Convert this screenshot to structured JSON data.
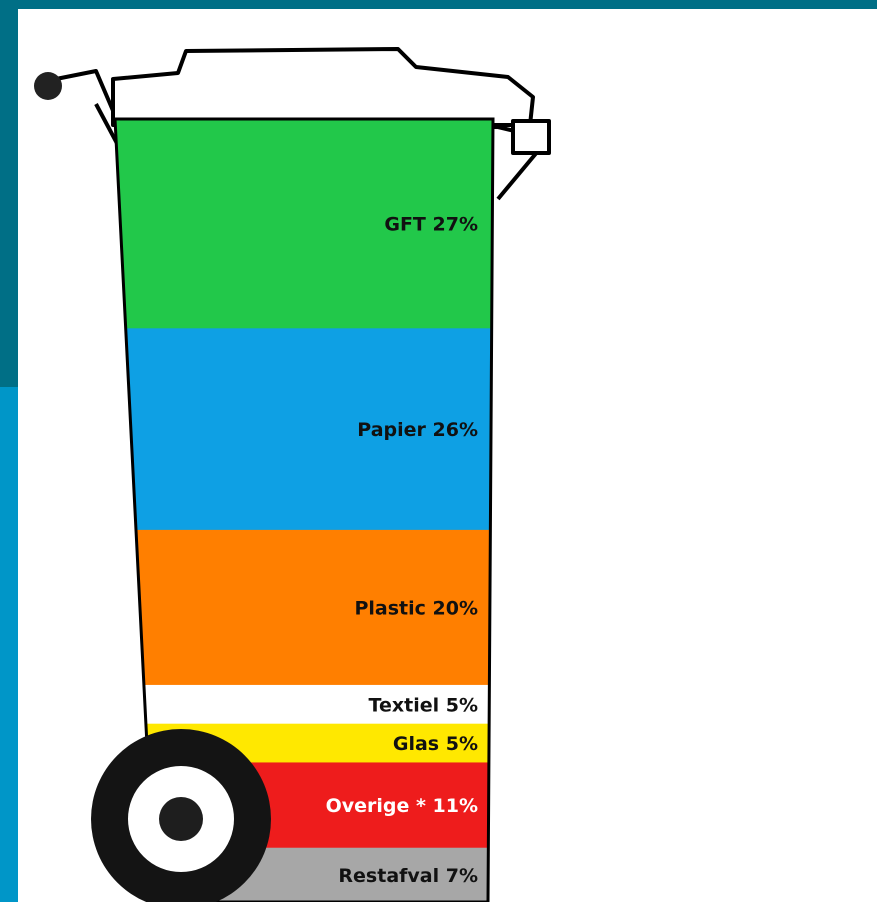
{
  "colors": {
    "frame_top": "#006f86",
    "frame_bottom": "#0096c8",
    "canvas": "#ffffff",
    "outline": "#000000"
  },
  "chart_data": {
    "type": "bar",
    "orientation": "stacked-vertical",
    "categories": [
      "GFT",
      "Papier",
      "Plastic",
      "Textiel",
      "Glas",
      "Overige *",
      "Restafval"
    ],
    "values": [
      27,
      26,
      20,
      5,
      5,
      11,
      7
    ],
    "unit": "%",
    "segments": [
      {
        "label": "GFT 27%",
        "value": 27,
        "color": "#22c84a",
        "text_color": "#111111"
      },
      {
        "label": "Papier 26%",
        "value": 26,
        "color": "#0ea0e4",
        "text_color": "#111111"
      },
      {
        "label": "Plastic 20%",
        "value": 20,
        "color": "#ff7f00",
        "text_color": "#111111"
      },
      {
        "label": "Textiel 5%",
        "value": 5,
        "color": "#ffffff",
        "text_color": "#111111"
      },
      {
        "label": "Glas 5%",
        "value": 5,
        "color": "#ffe800",
        "text_color": "#111111"
      },
      {
        "label": "Overige * 11%",
        "value": 11,
        "color": "#ee1c1c",
        "text_color": "#ffffff"
      },
      {
        "label": "Restafval 7%",
        "value": 7,
        "color": "#a7a7a7",
        "text_color": "#111111"
      }
    ]
  }
}
